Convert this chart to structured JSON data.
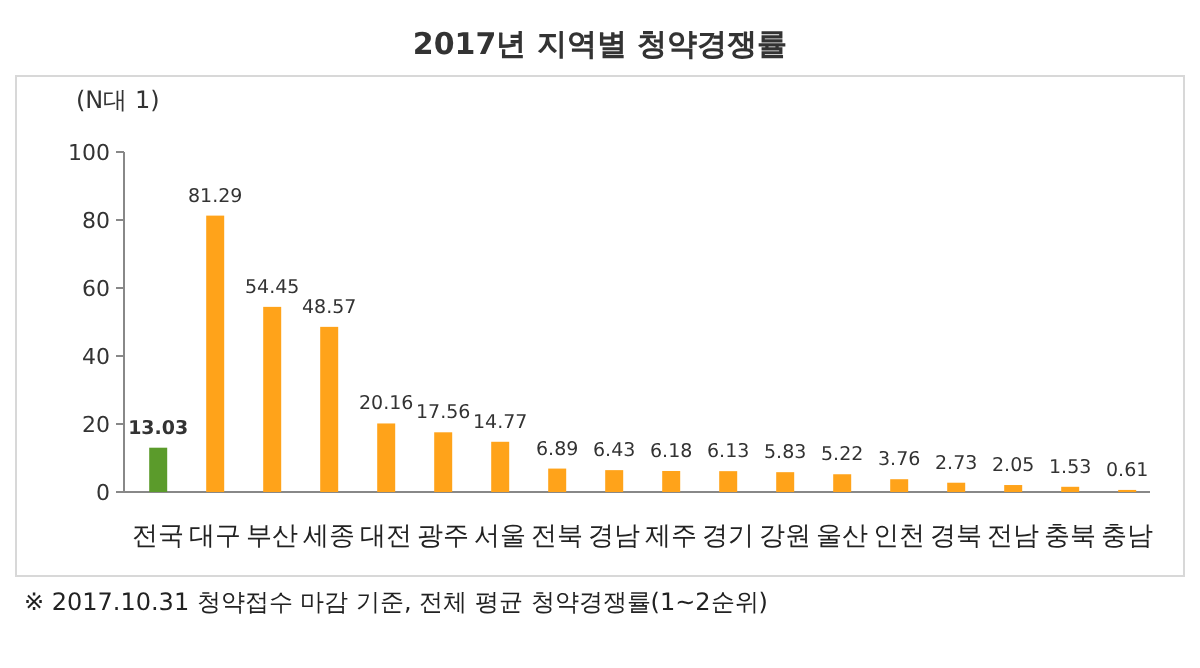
{
  "chart_data": {
    "type": "bar",
    "title": "2017년 지역별 청약경쟁률",
    "ylabel": "(N대 1)",
    "categories": [
      "전국",
      "대구",
      "부산",
      "세종",
      "대전",
      "광주",
      "서울",
      "전북",
      "경남",
      "제주",
      "경기",
      "강원",
      "울산",
      "인천",
      "경북",
      "전남",
      "충북",
      "충남"
    ],
    "values": [
      13.03,
      81.29,
      54.45,
      48.57,
      20.16,
      17.56,
      14.77,
      6.89,
      6.43,
      6.18,
      6.13,
      5.83,
      5.22,
      3.76,
      2.73,
      2.05,
      1.53,
      0.61
    ],
    "colors": [
      "#5b9b2b",
      "#ffa31a",
      "#ffa31a",
      "#ffa31a",
      "#ffa31a",
      "#ffa31a",
      "#ffa31a",
      "#ffa31a",
      "#ffa31a",
      "#ffa31a",
      "#ffa31a",
      "#ffa31a",
      "#ffa31a",
      "#ffa31a",
      "#ffa31a",
      "#ffa31a",
      "#ffa31a",
      "#ffa31a"
    ],
    "ylim": [
      0,
      100
    ],
    "yticks": [
      0,
      20,
      40,
      60,
      80,
      100
    ],
    "data_labels": true,
    "annotations": [
      "※ 2017.10.31 청약접수 마감 기준, 전체 평균 청약경쟁률(1~2순위)"
    ]
  }
}
